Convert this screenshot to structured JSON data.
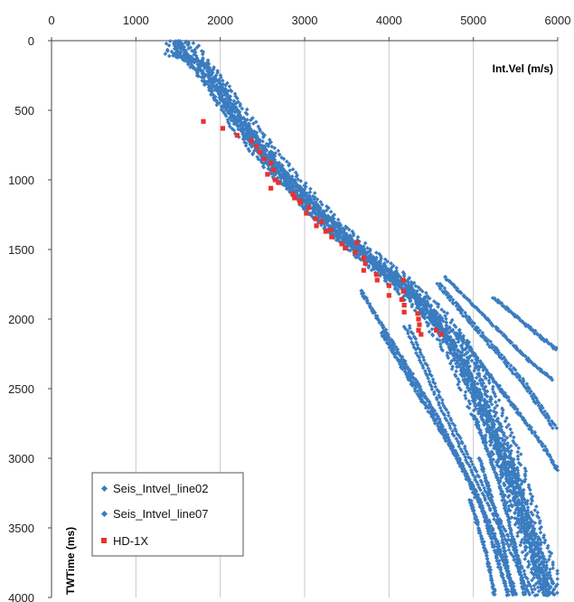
{
  "chart_data": {
    "type": "scatter",
    "x_axis": {
      "label": "Int.Vel (m/s)",
      "range": [
        0,
        6000
      ],
      "ticks": [
        0,
        1000,
        2000,
        3000,
        4000,
        5000,
        6000
      ],
      "position": "top"
    },
    "y_axis": {
      "label": "TWTime (ms)",
      "range": [
        0,
        4000
      ],
      "ticks": [
        0,
        500,
        1000,
        1500,
        2000,
        2500,
        3000,
        3500,
        4000
      ],
      "reversed": true
    },
    "grid": {
      "vertical": true,
      "horizontal": false
    },
    "legend": {
      "placement": "bottom-left"
    },
    "colors": {
      "seis": "#3A7CC0",
      "well": "#E8322E"
    },
    "series": [
      {
        "name": "Seis_Intvel_line02",
        "marker": "diamond",
        "color": "#3A7CC0",
        "trend": [
          [
            1450,
            0
          ],
          [
            1450,
            100
          ],
          [
            1700,
            150
          ],
          [
            1900,
            300
          ],
          [
            2200,
            600
          ],
          [
            2600,
            900
          ],
          [
            3000,
            1150
          ],
          [
            3400,
            1400
          ],
          [
            3800,
            1600
          ],
          [
            4200,
            1800
          ],
          [
            4500,
            2000
          ],
          [
            4800,
            2300
          ],
          [
            5100,
            2700
          ],
          [
            5400,
            3100
          ],
          [
            5650,
            3600
          ],
          [
            5850,
            4000
          ]
        ],
        "branches": [
          [
            [
              4200,
              2050
            ],
            [
              4600,
              2600
            ],
            [
              5000,
              3100
            ],
            [
              5400,
              3600
            ],
            [
              5700,
              4000
            ]
          ],
          [
            [
              3900,
              2100
            ],
            [
              4300,
              2500
            ],
            [
              4800,
              3000
            ],
            [
              5200,
              3500
            ],
            [
              5500,
              4000
            ]
          ],
          [
            [
              4600,
              1750
            ],
            [
              5100,
              2100
            ],
            [
              5600,
              2450
            ],
            [
              6000,
              2800
            ]
          ],
          [
            [
              5000,
              2700
            ],
            [
              5300,
              3200
            ],
            [
              5500,
              3700
            ],
            [
              5600,
              4000
            ]
          ],
          [
            [
              5100,
              3000
            ],
            [
              5350,
              3500
            ],
            [
              5500,
              4000
            ]
          ]
        ]
      },
      {
        "name": "Seis_Intvel_line07",
        "marker": "diamond",
        "color": "#3A7CC0",
        "trend": [
          [
            1500,
            0
          ],
          [
            1650,
            120
          ],
          [
            1950,
            350
          ],
          [
            2300,
            650
          ],
          [
            2700,
            950
          ],
          [
            3150,
            1250
          ],
          [
            3600,
            1500
          ],
          [
            4050,
            1700
          ],
          [
            4400,
            1900
          ],
          [
            4750,
            2150
          ],
          [
            5050,
            2500
          ],
          [
            5350,
            2950
          ],
          [
            5600,
            3450
          ],
          [
            5900,
            4000
          ]
        ],
        "branches": [
          [
            [
              3700,
              1800
            ],
            [
              4100,
              2200
            ],
            [
              4600,
              2700
            ],
            [
              5100,
              3300
            ],
            [
              5450,
              4000
            ]
          ],
          [
            [
              4700,
              1700
            ],
            [
              5200,
              2000
            ],
            [
              5700,
              2300
            ],
            [
              6000,
              2450
            ]
          ],
          [
            [
              5200,
              1850
            ],
            [
              5700,
              2100
            ],
            [
              6000,
              2250
            ]
          ],
          [
            [
              4800,
              2100
            ],
            [
              5300,
              2500
            ],
            [
              5800,
              2900
            ],
            [
              6000,
              3100
            ]
          ],
          [
            [
              5000,
              3300
            ],
            [
              5200,
              3700
            ],
            [
              5300,
              4000
            ]
          ]
        ]
      },
      {
        "name": "HD-1X",
        "marker": "square",
        "color": "#E8322E",
        "points": [
          [
            1800,
            580
          ],
          [
            2030,
            630
          ],
          [
            2200,
            680
          ],
          [
            2370,
            720
          ],
          [
            2430,
            760
          ],
          [
            2470,
            800
          ],
          [
            2520,
            850
          ],
          [
            2600,
            880
          ],
          [
            2630,
            930
          ],
          [
            2560,
            960
          ],
          [
            2650,
            1000
          ],
          [
            2690,
            1020
          ],
          [
            2600,
            1060
          ],
          [
            2860,
            1100
          ],
          [
            2880,
            1130
          ],
          [
            2950,
            1160
          ],
          [
            3050,
            1200
          ],
          [
            3020,
            1240
          ],
          [
            3130,
            1280
          ],
          [
            3200,
            1300
          ],
          [
            3140,
            1330
          ],
          [
            3250,
            1370
          ],
          [
            3320,
            1410
          ],
          [
            3440,
            1460
          ],
          [
            3480,
            1490
          ],
          [
            3600,
            1520
          ],
          [
            3700,
            1560
          ],
          [
            3720,
            1600
          ],
          [
            3700,
            1650
          ],
          [
            3850,
            1680
          ],
          [
            3860,
            1720
          ],
          [
            4000,
            1760
          ],
          [
            4000,
            1830
          ],
          [
            4170,
            1800
          ],
          [
            4150,
            1860
          ],
          [
            4180,
            1900
          ],
          [
            4180,
            1950
          ],
          [
            4340,
            1960
          ],
          [
            4350,
            2000
          ],
          [
            4360,
            2040
          ],
          [
            4350,
            2080
          ],
          [
            4380,
            2110
          ],
          [
            4560,
            2080
          ],
          [
            4620,
            2110
          ],
          [
            4170,
            1720
          ],
          [
            3620,
            1450
          ],
          [
            3310,
            1360
          ],
          [
            2940,
            1150
          ]
        ]
      }
    ]
  },
  "labels": {
    "xlabel": "Int.Vel (m/s)",
    "ylabel": "TWTime (ms)",
    "legend": [
      "Seis_Intvel_line02",
      "Seis_Intvel_line07",
      "HD-1X"
    ]
  }
}
